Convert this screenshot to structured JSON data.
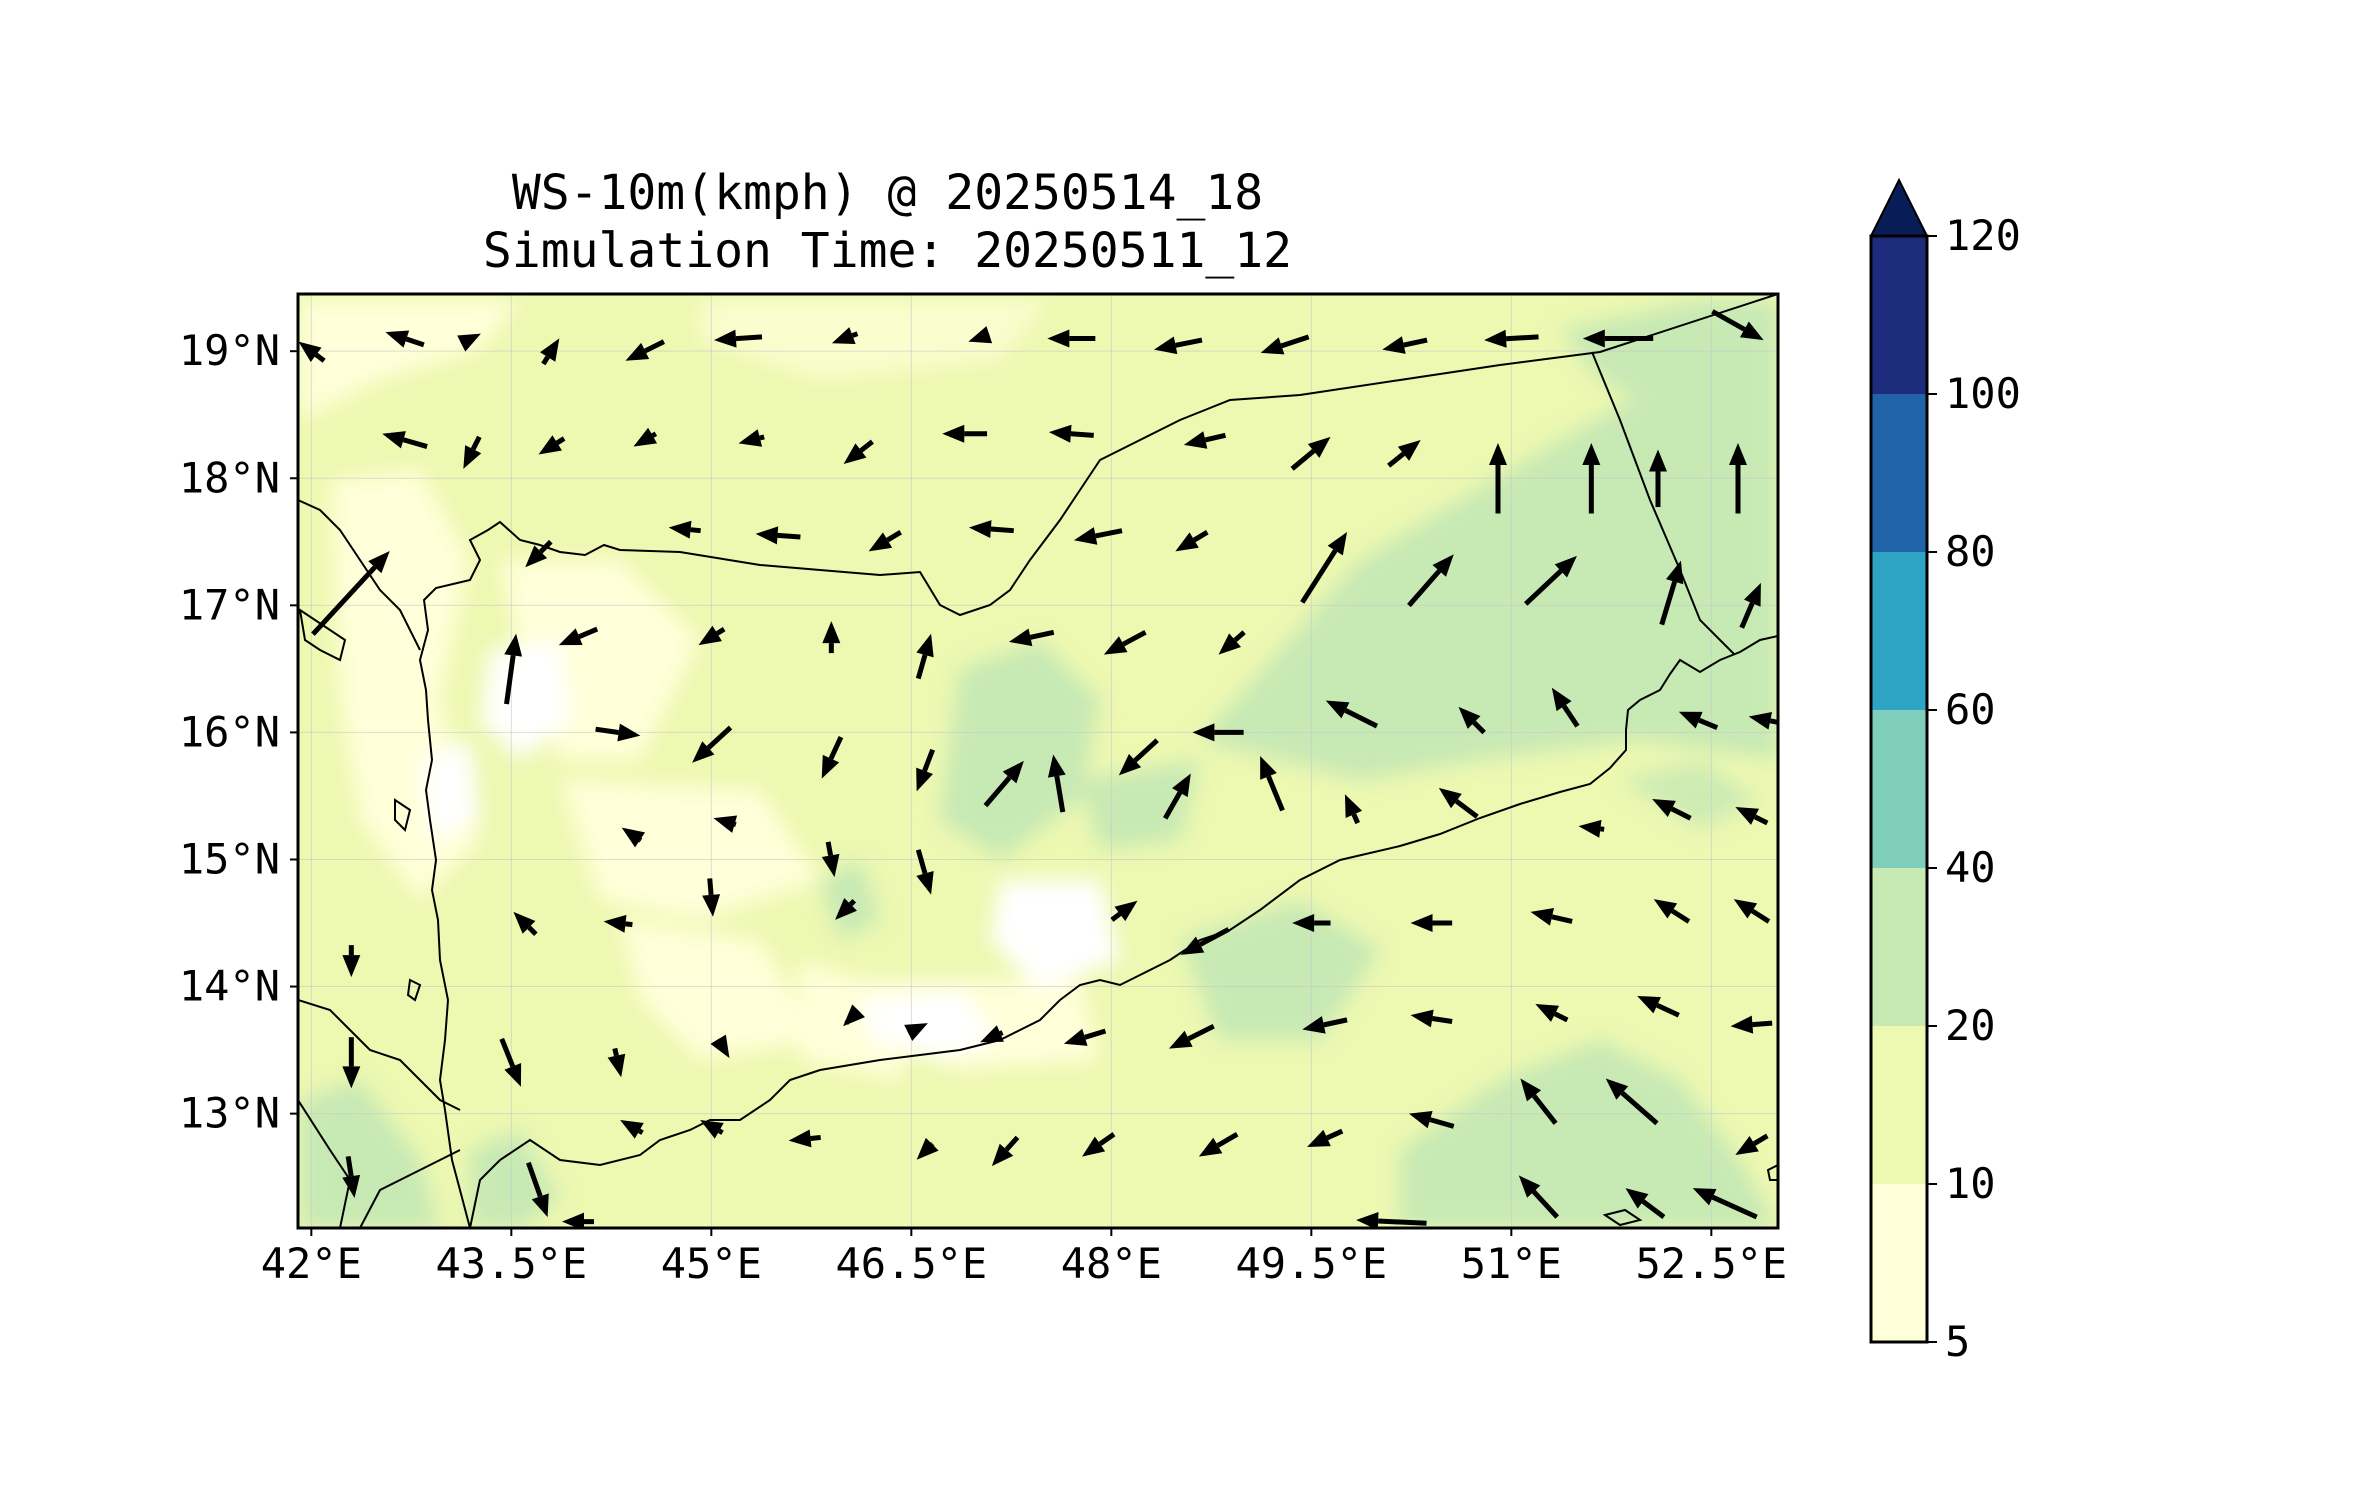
{
  "title": {
    "line1": "WS-10m(kmph) @ 20250514_18",
    "line2": "Simulation Time: 20250511_12"
  },
  "map": {
    "lon_range": [
      41.9,
      53.0
    ],
    "lat_range": [
      12.1,
      19.45
    ],
    "x_ticks": [
      {
        "value": 42.0,
        "label": "42°E"
      },
      {
        "value": 43.5,
        "label": "43.5°E"
      },
      {
        "value": 45.0,
        "label": "45°E"
      },
      {
        "value": 46.5,
        "label": "46.5°E"
      },
      {
        "value": 48.0,
        "label": "48°E"
      },
      {
        "value": 49.5,
        "label": "49.5°E"
      },
      {
        "value": 51.0,
        "label": "51°E"
      },
      {
        "value": 52.5,
        "label": "52.5°E"
      }
    ],
    "y_ticks": [
      {
        "value": 19,
        "label": "19°N"
      },
      {
        "value": 18,
        "label": "18°N"
      },
      {
        "value": 17,
        "label": "17°N"
      },
      {
        "value": 16,
        "label": "16°N"
      },
      {
        "value": 15,
        "label": "15°N"
      },
      {
        "value": 14,
        "label": "14°N"
      },
      {
        "value": 13,
        "label": "13°N"
      }
    ],
    "grid": true
  },
  "colorbar": {
    "levels": [
      5,
      10,
      20,
      40,
      60,
      80,
      100,
      120
    ],
    "labels": [
      "5",
      "10",
      "20",
      "40",
      "60",
      "80",
      "100",
      "120"
    ],
    "colors": [
      "#ffffd9",
      "#edf8b1",
      "#c7e9b4",
      "#7fcdbb",
      "#2ea3c4",
      "#2163a8",
      "#1d2b7c"
    ],
    "extend_color": "#081d58",
    "extend": "max"
  },
  "chart_data": {
    "type": "heatmap",
    "title": "WS-10m(kmph) @ 20250514_18",
    "subtitle": "Simulation Time: 20250511_12",
    "xlabel": "",
    "ylabel": "",
    "xlim": [
      41.9,
      53.0
    ],
    "ylim": [
      12.1,
      19.45
    ],
    "grid": true,
    "colorbar_range": [
      5,
      120
    ],
    "wind_vectors_kmph": [
      {
        "lon": 42.0,
        "lat": 19.0,
        "u": -8,
        "v": 6
      },
      {
        "lon": 42.7,
        "lat": 19.1,
        "u": -12,
        "v": 4
      },
      {
        "lon": 43.2,
        "lat": 19.1,
        "u": 6,
        "v": 3
      },
      {
        "lon": 43.8,
        "lat": 19.0,
        "u": 5,
        "v": 8
      },
      {
        "lon": 44.5,
        "lat": 19.0,
        "u": -12,
        "v": -6
      },
      {
        "lon": 45.2,
        "lat": 19.1,
        "u": -15,
        "v": -1
      },
      {
        "lon": 46.0,
        "lat": 19.1,
        "u": -8,
        "v": -3
      },
      {
        "lon": 47.0,
        "lat": 19.1,
        "u": -6,
        "v": -2
      },
      {
        "lon": 47.7,
        "lat": 19.1,
        "u": -15,
        "v": 0
      },
      {
        "lon": 48.5,
        "lat": 19.05,
        "u": -15,
        "v": -3
      },
      {
        "lon": 49.3,
        "lat": 19.05,
        "u": -15,
        "v": -5
      },
      {
        "lon": 50.2,
        "lat": 19.05,
        "u": -14,
        "v": -3
      },
      {
        "lon": 51.0,
        "lat": 19.1,
        "u": -17,
        "v": -1
      },
      {
        "lon": 51.8,
        "lat": 19.1,
        "u": -22,
        "v": 0
      },
      {
        "lon": 52.7,
        "lat": 19.2,
        "u": 16,
        "v": -9
      },
      {
        "lon": 42.7,
        "lat": 18.3,
        "u": -14,
        "v": 4
      },
      {
        "lon": 43.2,
        "lat": 18.2,
        "u": -5,
        "v": -10
      },
      {
        "lon": 43.8,
        "lat": 18.25,
        "u": -8,
        "v": -5
      },
      {
        "lon": 44.5,
        "lat": 18.3,
        "u": -7,
        "v": -4
      },
      {
        "lon": 45.3,
        "lat": 18.3,
        "u": -8,
        "v": -2
      },
      {
        "lon": 46.1,
        "lat": 18.2,
        "u": -9,
        "v": -7
      },
      {
        "lon": 46.9,
        "lat": 18.35,
        "u": -14,
        "v": 0
      },
      {
        "lon": 47.7,
        "lat": 18.35,
        "u": -14,
        "v": 1
      },
      {
        "lon": 48.7,
        "lat": 18.3,
        "u": -13,
        "v": -3
      },
      {
        "lon": 49.5,
        "lat": 18.2,
        "u": 12,
        "v": 10
      },
      {
        "lon": 50.2,
        "lat": 18.2,
        "u": 10,
        "v": 8
      },
      {
        "lon": 50.9,
        "lat": 18.0,
        "u": 0,
        "v": 22
      },
      {
        "lon": 51.6,
        "lat": 18.0,
        "u": 0,
        "v": 22
      },
      {
        "lon": 52.1,
        "lat": 18.0,
        "u": 0,
        "v": 18
      },
      {
        "lon": 52.7,
        "lat": 18.0,
        "u": 0,
        "v": 22
      },
      {
        "lon": 43.7,
        "lat": 17.4,
        "u": -8,
        "v": -8
      },
      {
        "lon": 44.8,
        "lat": 17.6,
        "u": -10,
        "v": 1
      },
      {
        "lon": 45.5,
        "lat": 17.55,
        "u": -14,
        "v": 1
      },
      {
        "lon": 46.3,
        "lat": 17.5,
        "u": -10,
        "v": -6
      },
      {
        "lon": 47.1,
        "lat": 17.6,
        "u": -14,
        "v": 1
      },
      {
        "lon": 47.9,
        "lat": 17.55,
        "u": -15,
        "v": -3
      },
      {
        "lon": 48.6,
        "lat": 17.5,
        "u": -10,
        "v": -6
      },
      {
        "lon": 49.6,
        "lat": 17.3,
        "u": 14,
        "v": 22
      },
      {
        "lon": 50.4,
        "lat": 17.2,
        "u": 14,
        "v": 16
      },
      {
        "lon": 51.3,
        "lat": 17.2,
        "u": 16,
        "v": 15
      },
      {
        "lon": 52.2,
        "lat": 17.1,
        "u": 6,
        "v": 20
      },
      {
        "lon": 52.8,
        "lat": 17.0,
        "u": 6,
        "v": 14
      },
      {
        "lon": 42.3,
        "lat": 17.1,
        "u": 24,
        "v": 26
      },
      {
        "lon": 43.5,
        "lat": 16.5,
        "u": 3,
        "v": 22
      },
      {
        "lon": 44.0,
        "lat": 16.75,
        "u": -12,
        "v": -5
      },
      {
        "lon": 45.0,
        "lat": 16.75,
        "u": -8,
        "v": -5
      },
      {
        "lon": 45.9,
        "lat": 16.75,
        "u": 0,
        "v": 10
      },
      {
        "lon": 46.6,
        "lat": 16.6,
        "u": 4,
        "v": 14
      },
      {
        "lon": 47.4,
        "lat": 16.75,
        "u": -14,
        "v": -3
      },
      {
        "lon": 48.1,
        "lat": 16.7,
        "u": -13,
        "v": -7
      },
      {
        "lon": 48.9,
        "lat": 16.7,
        "u": -8,
        "v": -7
      },
      {
        "lon": 49.8,
        "lat": 16.15,
        "u": -16,
        "v": 8
      },
      {
        "lon": 50.7,
        "lat": 16.1,
        "u": -8,
        "v": 8
      },
      {
        "lon": 51.4,
        "lat": 16.2,
        "u": -8,
        "v": 12
      },
      {
        "lon": 52.4,
        "lat": 16.1,
        "u": -12,
        "v": 5
      },
      {
        "lon": 52.9,
        "lat": 16.1,
        "u": -10,
        "v": 2
      },
      {
        "lon": 44.3,
        "lat": 16.0,
        "u": 14,
        "v": -2
      },
      {
        "lon": 45.0,
        "lat": 15.9,
        "u": -12,
        "v": -11
      },
      {
        "lon": 45.9,
        "lat": 15.8,
        "u": -6,
        "v": -13
      },
      {
        "lon": 46.6,
        "lat": 15.7,
        "u": -5,
        "v": -13
      },
      {
        "lon": 47.2,
        "lat": 15.6,
        "u": 12,
        "v": 14
      },
      {
        "lon": 47.6,
        "lat": 15.6,
        "u": -3,
        "v": 18
      },
      {
        "lon": 48.2,
        "lat": 15.8,
        "u": -12,
        "v": -11
      },
      {
        "lon": 48.8,
        "lat": 16.0,
        "u": -16,
        "v": 0
      },
      {
        "lon": 48.5,
        "lat": 15.5,
        "u": 8,
        "v": 14
      },
      {
        "lon": 49.2,
        "lat": 15.6,
        "u": -7,
        "v": 17
      },
      {
        "lon": 49.8,
        "lat": 15.4,
        "u": -4,
        "v": 9
      },
      {
        "lon": 50.6,
        "lat": 15.45,
        "u": -12,
        "v": 9
      },
      {
        "lon": 51.6,
        "lat": 15.25,
        "u": -8,
        "v": 1
      },
      {
        "lon": 52.2,
        "lat": 15.4,
        "u": -12,
        "v": 6
      },
      {
        "lon": 52.8,
        "lat": 15.35,
        "u": -10,
        "v": 5
      },
      {
        "lon": 44.4,
        "lat": 15.2,
        "u": -6,
        "v": 4
      },
      {
        "lon": 45.1,
        "lat": 15.3,
        "u": -7,
        "v": 2
      },
      {
        "lon": 45.9,
        "lat": 15.0,
        "u": 2,
        "v": -11
      },
      {
        "lon": 46.6,
        "lat": 14.9,
        "u": 4,
        "v": -14
      },
      {
        "lon": 43.6,
        "lat": 14.5,
        "u": -7,
        "v": 7
      },
      {
        "lon": 44.3,
        "lat": 14.5,
        "u": -9,
        "v": 1
      },
      {
        "lon": 45.0,
        "lat": 14.7,
        "u": 1,
        "v": -12
      },
      {
        "lon": 46.0,
        "lat": 14.6,
        "u": -6,
        "v": -6
      },
      {
        "lon": 48.1,
        "lat": 14.6,
        "u": 8,
        "v": 6
      },
      {
        "lon": 48.7,
        "lat": 14.35,
        "u": -15,
        "v": -8
      },
      {
        "lon": 49.5,
        "lat": 14.5,
        "u": -12,
        "v": 0
      },
      {
        "lon": 50.4,
        "lat": 14.5,
        "u": -13,
        "v": 0
      },
      {
        "lon": 51.3,
        "lat": 14.55,
        "u": -13,
        "v": 3
      },
      {
        "lon": 52.2,
        "lat": 14.6,
        "u": -11,
        "v": 7
      },
      {
        "lon": 52.8,
        "lat": 14.6,
        "u": -11,
        "v": 7
      },
      {
        "lon": 42.3,
        "lat": 14.2,
        "u": 0,
        "v": -10
      },
      {
        "lon": 42.3,
        "lat": 13.4,
        "u": 0,
        "v": -16
      },
      {
        "lon": 43.5,
        "lat": 13.4,
        "u": 6,
        "v": -15
      },
      {
        "lon": 44.3,
        "lat": 13.4,
        "u": 2,
        "v": -9
      },
      {
        "lon": 45.1,
        "lat": 13.5,
        "u": 3,
        "v": -5
      },
      {
        "lon": 46.0,
        "lat": 13.7,
        "u": -1,
        "v": -1
      },
      {
        "lon": 46.6,
        "lat": 13.7,
        "u": 2,
        "v": 1
      },
      {
        "lon": 47.1,
        "lat": 13.6,
        "u": -7,
        "v": -3
      },
      {
        "lon": 47.8,
        "lat": 13.6,
        "u": -13,
        "v": -4
      },
      {
        "lon": 48.6,
        "lat": 13.6,
        "u": -14,
        "v": -7
      },
      {
        "lon": 49.6,
        "lat": 13.7,
        "u": -14,
        "v": -3
      },
      {
        "lon": 50.4,
        "lat": 13.75,
        "u": -13,
        "v": 2
      },
      {
        "lon": 51.3,
        "lat": 13.8,
        "u": -10,
        "v": 5
      },
      {
        "lon": 52.1,
        "lat": 13.85,
        "u": -13,
        "v": 6
      },
      {
        "lon": 52.8,
        "lat": 13.7,
        "u": -13,
        "v": -1
      },
      {
        "lon": 51.2,
        "lat": 13.1,
        "u": -11,
        "v": 14
      },
      {
        "lon": 51.9,
        "lat": 13.1,
        "u": -16,
        "v": 14
      },
      {
        "lon": 42.3,
        "lat": 12.5,
        "u": 2,
        "v": -13
      },
      {
        "lon": 43.7,
        "lat": 12.4,
        "u": 6,
        "v": -17
      },
      {
        "lon": 44.4,
        "lat": 12.9,
        "u": -7,
        "v": 4
      },
      {
        "lon": 45.0,
        "lat": 12.9,
        "u": -7,
        "v": 4
      },
      {
        "lon": 45.7,
        "lat": 12.8,
        "u": -10,
        "v": -1
      },
      {
        "lon": 46.6,
        "lat": 12.7,
        "u": -5,
        "v": -5
      },
      {
        "lon": 47.2,
        "lat": 12.7,
        "u": -8,
        "v": -9
      },
      {
        "lon": 47.9,
        "lat": 12.75,
        "u": -10,
        "v": -7
      },
      {
        "lon": 48.8,
        "lat": 12.75,
        "u": -12,
        "v": -7
      },
      {
        "lon": 49.6,
        "lat": 12.8,
        "u": -11,
        "v": -5
      },
      {
        "lon": 50.4,
        "lat": 12.95,
        "u": -14,
        "v": 4
      },
      {
        "lon": 51.2,
        "lat": 12.35,
        "u": -12,
        "v": 13
      },
      {
        "lon": 52.0,
        "lat": 12.3,
        "u": -12,
        "v": 9
      },
      {
        "lon": 52.6,
        "lat": 12.3,
        "u": -20,
        "v": 9
      },
      {
        "lon": 52.8,
        "lat": 12.75,
        "u": -10,
        "v": -6
      },
      {
        "lon": 44.0,
        "lat": 12.15,
        "u": -10,
        "v": 0
      },
      {
        "lon": 50.1,
        "lat": 12.15,
        "u": -22,
        "v": 1
      }
    ]
  }
}
